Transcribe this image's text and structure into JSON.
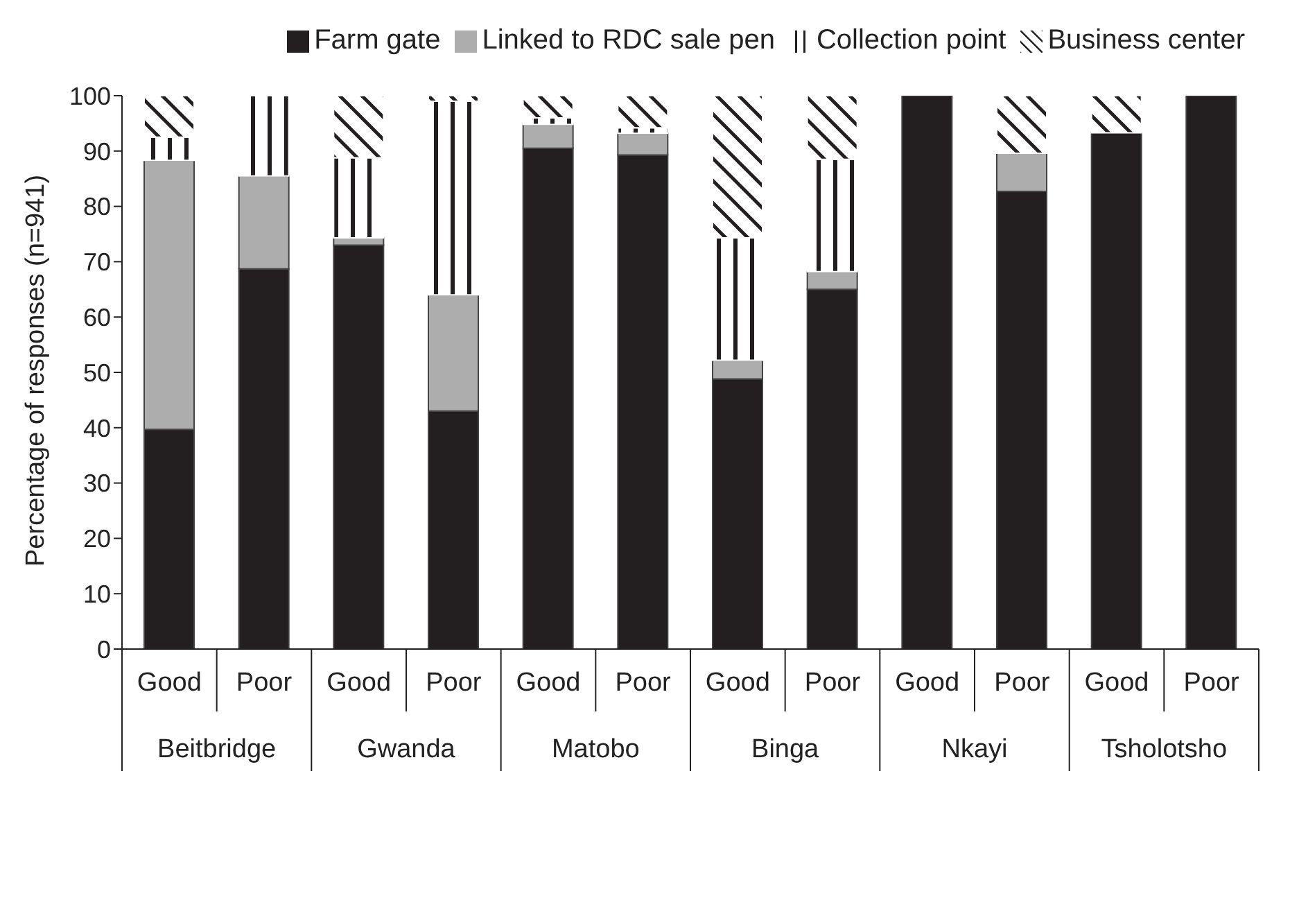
{
  "chart_data": {
    "type": "bar",
    "stacked": true,
    "ylabel": "Percentage of responses (n=941)",
    "categories": [
      "Good",
      "Poor",
      "Good",
      "Poor",
      "Good",
      "Poor",
      "Good",
      "Poor",
      "Good",
      "Poor",
      "Good",
      "Poor"
    ],
    "annotations": [
      "Beitbridge",
      "Gwanda",
      "Matobo",
      "Binga",
      "Nkayi",
      "Tsholotsho"
    ],
    "series": [
      {
        "name": "Farm gate",
        "color": "#231f20",
        "values": [
          39.7,
          68.7,
          73,
          43,
          90.5,
          89.3,
          48.8,
          65,
          100,
          82.7,
          93.3,
          100
        ]
      },
      {
        "name": "Linked to RDC sale pen",
        "color": "#adadad",
        "values": [
          48.6,
          16.8,
          1.3,
          21,
          4.3,
          3.9,
          3.4,
          3.2,
          0,
          6.9,
          0,
          0
        ]
      },
      {
        "name": "Collection point",
        "color": "#ffffff",
        "values": [
          4.2,
          14.5,
          14.5,
          35,
          1.2,
          1,
          22.1,
          20.3,
          0,
          0,
          0,
          0
        ]
      },
      {
        "name": "Business center",
        "color": "#ffffff",
        "values": [
          7.5,
          0,
          11.2,
          1,
          4,
          5.8,
          25.7,
          11.5,
          0,
          10.4,
          6.7,
          0
        ]
      }
    ],
    "ylim": [
      0,
      100
    ],
    "yticks": [
      0,
      10,
      20,
      30,
      40,
      50,
      60,
      70,
      80,
      90,
      100
    ],
    "grid": false,
    "legend": "top"
  }
}
